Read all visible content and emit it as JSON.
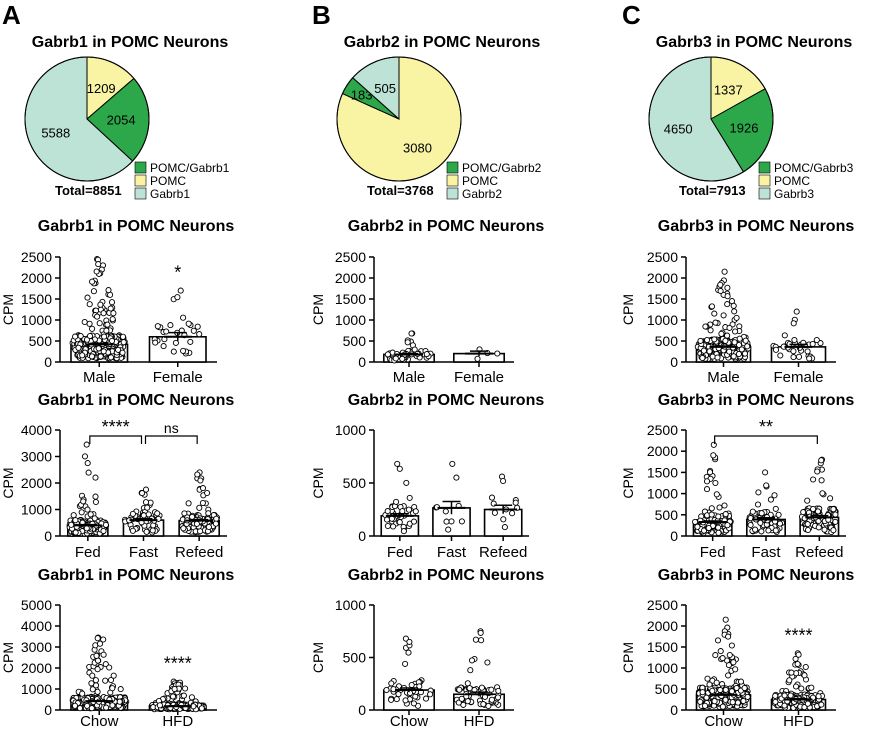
{
  "colors": {
    "copos": "#2ca84a",
    "pomc": "#f8f4a4",
    "gene": "#bde2d6",
    "bar_fill": "#ffffff",
    "point_fill": "#ffffff",
    "stroke": "#000000"
  },
  "panels": [
    {
      "letter": "A",
      "pie": {
        "title": "Gabrb1 in POMC Neurons",
        "total_label": "Total=8851",
        "slices": [
          {
            "label": "POMC/Gabrb1",
            "value": 2054,
            "color_key": "copos"
          },
          {
            "label": "POMC",
            "value": 1209,
            "color_key": "pomc"
          },
          {
            "label": "Gabrb1",
            "value": 5588,
            "color_key": "gene"
          }
        ]
      },
      "charts": [
        {
          "title": "Gabrb1 in POMC Neurons",
          "ylabel": "CPM",
          "ylim": [
            0,
            2500
          ],
          "yticks": [
            0,
            500,
            1000,
            1500,
            2000,
            2500
          ],
          "categories": [
            "Male",
            "Female"
          ],
          "means": [
            420,
            600
          ],
          "sem": [
            25,
            100
          ],
          "n": [
            300,
            30
          ],
          "maxv": [
            2450,
            1700
          ],
          "annotations": [
            {
              "text": "*",
              "over": 1
            }
          ],
          "brackets": []
        },
        {
          "title": "Gabrb1 in POMC Neurons",
          "ylabel": "CPM",
          "ylim": [
            0,
            4000
          ],
          "yticks": [
            0,
            1000,
            2000,
            3000,
            4000
          ],
          "categories": [
            "Fed",
            "Fast",
            "Refeed"
          ],
          "means": [
            400,
            600,
            580
          ],
          "sem": [
            30,
            50,
            40
          ],
          "n": [
            150,
            70,
            110
          ],
          "maxv": [
            3450,
            1750,
            2400
          ],
          "annotations": [],
          "brackets": [
            {
              "from": 0,
              "to": 1,
              "text": "****"
            },
            {
              "from": 1,
              "to": 2,
              "text": "ns"
            }
          ]
        },
        {
          "title": "Gabrb1 in POMC Neurons",
          "ylabel": "CPM",
          "ylim": [
            0,
            5000
          ],
          "yticks": [
            0,
            1000,
            2000,
            3000,
            4000,
            5000
          ],
          "categories": [
            "Chow",
            "HFD"
          ],
          "means": [
            420,
            180
          ],
          "sem": [
            20,
            15
          ],
          "n": [
            280,
            180
          ],
          "maxv": [
            3450,
            1350
          ],
          "annotations": [
            {
              "text": "****",
              "over": 1
            }
          ],
          "brackets": []
        }
      ]
    },
    {
      "letter": "B",
      "pie": {
        "title": "Gabrb2 in POMC Neurons",
        "total_label": "Total=3768",
        "slices": [
          {
            "label": "POMC/Gabrb2",
            "value": 183,
            "color_key": "copos"
          },
          {
            "label": "POMC",
            "value": 3080,
            "color_key": "pomc"
          },
          {
            "label": "Gabrb2",
            "value": 505,
            "color_key": "gene"
          }
        ]
      },
      "charts": [
        {
          "title": "Gabrb2 in POMC Neurons",
          "ylabel": "CPM",
          "ylim": [
            0,
            2500
          ],
          "yticks": [
            0,
            500,
            1000,
            1500,
            2000,
            2500
          ],
          "categories": [
            "Male",
            "Female"
          ],
          "means": [
            180,
            200
          ],
          "sem": [
            20,
            60
          ],
          "n": [
            45,
            4
          ],
          "maxv": [
            680,
            300
          ],
          "annotations": [],
          "brackets": []
        },
        {
          "title": "Gabrb2 in POMC Neurons",
          "ylabel": "CPM",
          "ylim": [
            0,
            1000
          ],
          "yticks": [
            0,
            500,
            1000
          ],
          "categories": [
            "Fed",
            "Fast",
            "Refeed"
          ],
          "means": [
            190,
            265,
            250
          ],
          "sem": [
            20,
            60,
            40
          ],
          "n": [
            40,
            10,
            12
          ],
          "maxv": [
            680,
            680,
            560
          ],
          "annotations": [],
          "brackets": []
        },
        {
          "title": "Gabrb2 in POMC Neurons",
          "ylabel": "CPM",
          "ylim": [
            0,
            1000
          ],
          "yticks": [
            0,
            500,
            1000
          ],
          "categories": [
            "Chow",
            "HFD"
          ],
          "means": [
            190,
            150
          ],
          "sem": [
            20,
            20
          ],
          "n": [
            45,
            60
          ],
          "maxv": [
            680,
            750
          ],
          "annotations": [],
          "brackets": []
        }
      ]
    },
    {
      "letter": "C",
      "pie": {
        "title": "Gabrb3 in POMC Neurons",
        "total_label": "Total=7913",
        "slices": [
          {
            "label": "POMC/Gabrb3",
            "value": 1926,
            "color_key": "copos"
          },
          {
            "label": "POMC",
            "value": 1337,
            "color_key": "pomc"
          },
          {
            "label": "Gabrb3",
            "value": 4650,
            "color_key": "gene"
          }
        ]
      },
      "charts": [
        {
          "title": "Gabrb3 in POMC Neurons",
          "ylabel": "CPM",
          "ylim": [
            0,
            2500
          ],
          "yticks": [
            0,
            500,
            1000,
            1500,
            2000,
            2500
          ],
          "categories": [
            "Male",
            "Female"
          ],
          "means": [
            360,
            360
          ],
          "sem": [
            20,
            60
          ],
          "n": [
            270,
            35
          ],
          "maxv": [
            2150,
            1200
          ],
          "annotations": [],
          "brackets": []
        },
        {
          "title": "Gabrb3 in POMC Neurons",
          "ylabel": "CPM",
          "ylim": [
            0,
            2500
          ],
          "yticks": [
            0,
            500,
            1000,
            1500,
            2000,
            2500
          ],
          "categories": [
            "Fed",
            "Fast",
            "Refeed"
          ],
          "means": [
            330,
            390,
            440
          ],
          "sem": [
            25,
            40,
            40
          ],
          "n": [
            150,
            65,
            100
          ],
          "maxv": [
            2150,
            1500,
            1800
          ],
          "annotations": [],
          "brackets": [
            {
              "from": 0,
              "to": 2,
              "text": "**"
            }
          ]
        },
        {
          "title": "Gabrb3 in POMC Neurons",
          "ylabel": "CPM",
          "ylim": [
            0,
            2500
          ],
          "yticks": [
            0,
            500,
            1000,
            1500,
            2000,
            2500
          ],
          "categories": [
            "Chow",
            "HFD"
          ],
          "means": [
            360,
            250
          ],
          "sem": [
            20,
            20
          ],
          "n": [
            270,
            180
          ],
          "maxv": [
            2150,
            1350
          ],
          "annotations": [
            {
              "text": "****",
              "over": 1
            }
          ],
          "brackets": []
        }
      ]
    }
  ],
  "chart_data": [
    {
      "type": "pie",
      "title": "Gabrb1 in POMC Neurons",
      "labels": [
        "POMC/Gabrb1",
        "POMC",
        "Gabrb1"
      ],
      "values": [
        2054,
        1209,
        5588
      ],
      "total": 8851
    },
    {
      "type": "pie",
      "title": "Gabrb2 in POMC Neurons",
      "labels": [
        "POMC/Gabrb2",
        "POMC",
        "Gabrb2"
      ],
      "values": [
        183,
        3080,
        505
      ],
      "total": 3768
    },
    {
      "type": "pie",
      "title": "Gabrb3 in POMC Neurons",
      "labels": [
        "POMC/Gabrb3",
        "POMC",
        "Gabrb3"
      ],
      "values": [
        1926,
        1337,
        4650
      ],
      "total": 7913
    },
    {
      "type": "bar",
      "title": "Gabrb1 in POMC Neurons",
      "categories": [
        "Male",
        "Female"
      ],
      "values": [
        420,
        600
      ],
      "ylabel": "CPM",
      "ylim": [
        0,
        2500
      ]
    },
    {
      "type": "bar",
      "title": "Gabrb1 in POMC Neurons",
      "categories": [
        "Fed",
        "Fast",
        "Refeed"
      ],
      "values": [
        400,
        600,
        580
      ],
      "ylabel": "CPM",
      "ylim": [
        0,
        4000
      ]
    },
    {
      "type": "bar",
      "title": "Gabrb1 in POMC Neurons",
      "categories": [
        "Chow",
        "HFD"
      ],
      "values": [
        420,
        180
      ],
      "ylabel": "CPM",
      "ylim": [
        0,
        5000
      ]
    },
    {
      "type": "bar",
      "title": "Gabrb2 in POMC Neurons",
      "categories": [
        "Male",
        "Female"
      ],
      "values": [
        180,
        200
      ],
      "ylabel": "CPM",
      "ylim": [
        0,
        2500
      ]
    },
    {
      "type": "bar",
      "title": "Gabrb2 in POMC Neurons",
      "categories": [
        "Fed",
        "Fast",
        "Refeed"
      ],
      "values": [
        190,
        265,
        250
      ],
      "ylabel": "CPM",
      "ylim": [
        0,
        1000
      ]
    },
    {
      "type": "bar",
      "title": "Gabrb2 in POMC Neurons",
      "categories": [
        "Chow",
        "HFD"
      ],
      "values": [
        190,
        150
      ],
      "ylabel": "CPM",
      "ylim": [
        0,
        1000
      ]
    },
    {
      "type": "bar",
      "title": "Gabrb3 in POMC Neurons",
      "categories": [
        "Male",
        "Female"
      ],
      "values": [
        360,
        360
      ],
      "ylabel": "CPM",
      "ylim": [
        0,
        2500
      ]
    },
    {
      "type": "bar",
      "title": "Gabrb3 in POMC Neurons",
      "categories": [
        "Fed",
        "Fast",
        "Refeed"
      ],
      "values": [
        330,
        390,
        440
      ],
      "ylabel": "CPM",
      "ylim": [
        0,
        2500
      ]
    },
    {
      "type": "bar",
      "title": "Gabrb3 in POMC Neurons",
      "categories": [
        "Chow",
        "HFD"
      ],
      "values": [
        360,
        250
      ],
      "ylabel": "CPM",
      "ylim": [
        0,
        2500
      ]
    }
  ]
}
